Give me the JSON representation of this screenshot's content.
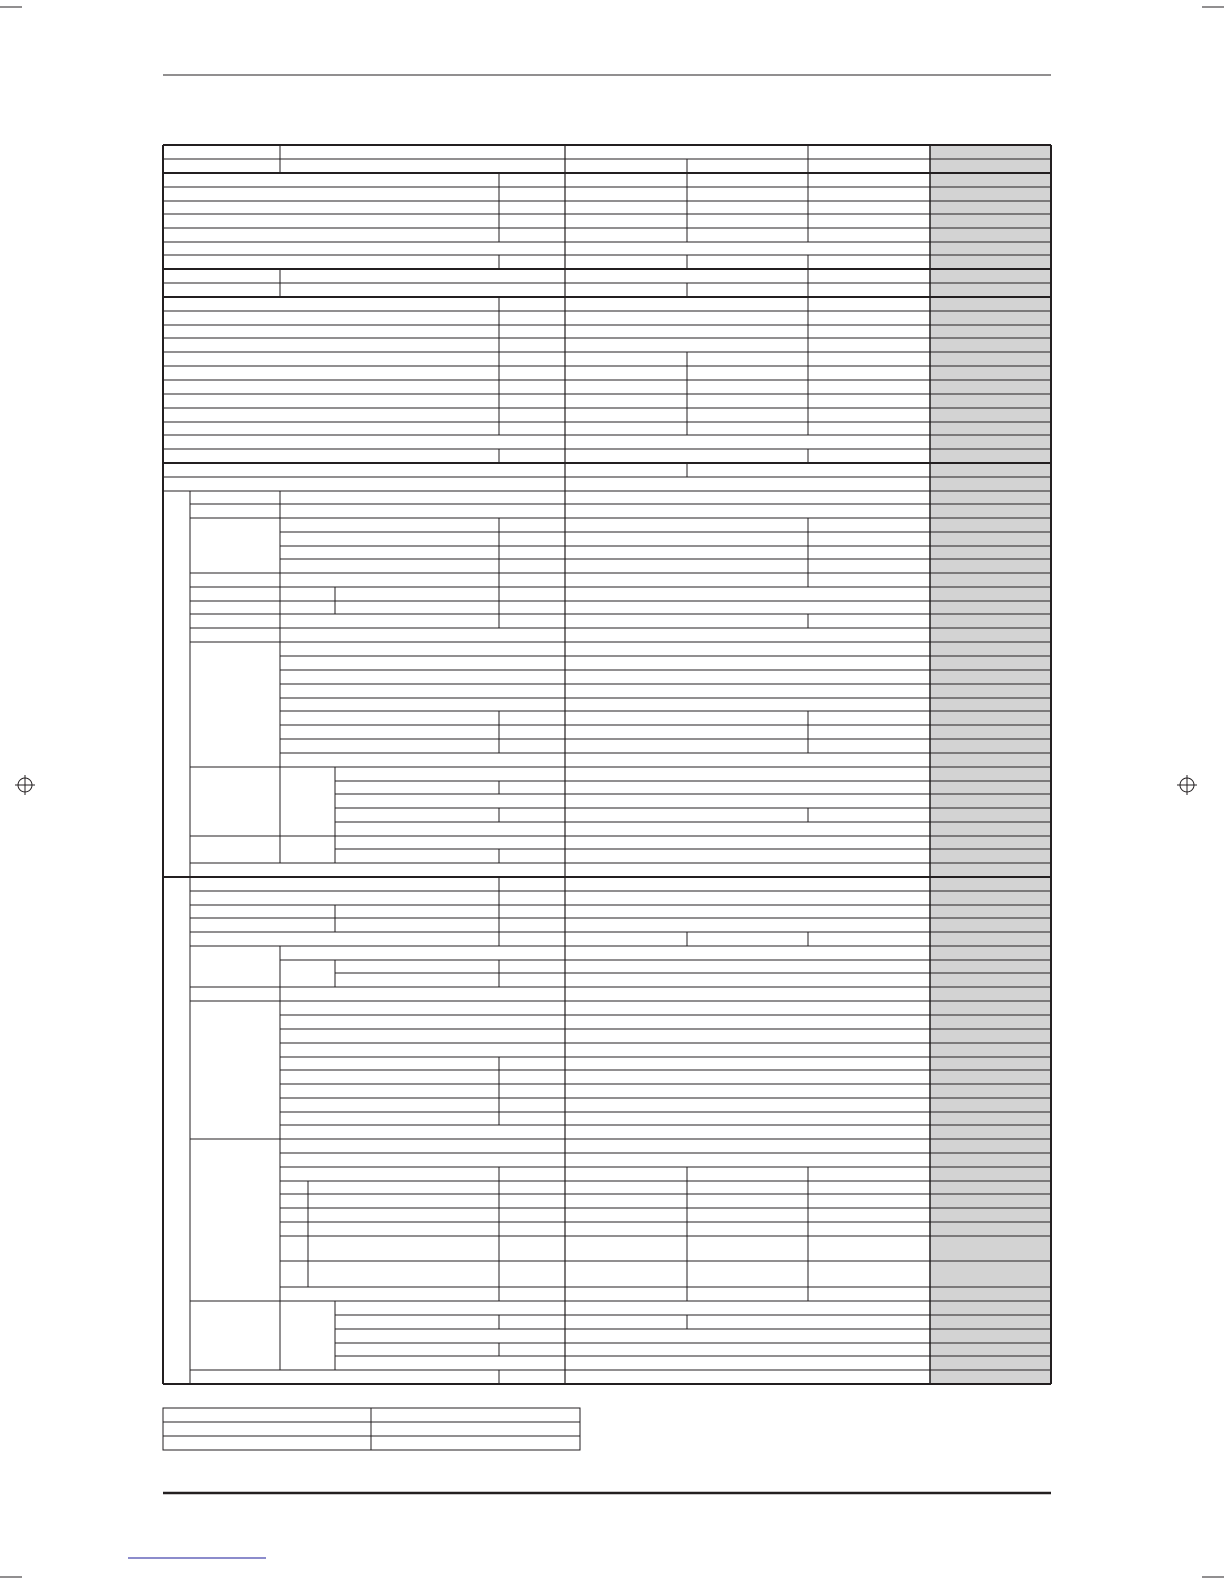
{
  "page": {
    "colors": {
      "rule": "#231f20",
      "shaded_column": "#d3d3d3",
      "link_underline": "#1a1a9a"
    }
  },
  "spec_table": {
    "cells_text": []
  },
  "small_table": {
    "cells_text": []
  }
}
